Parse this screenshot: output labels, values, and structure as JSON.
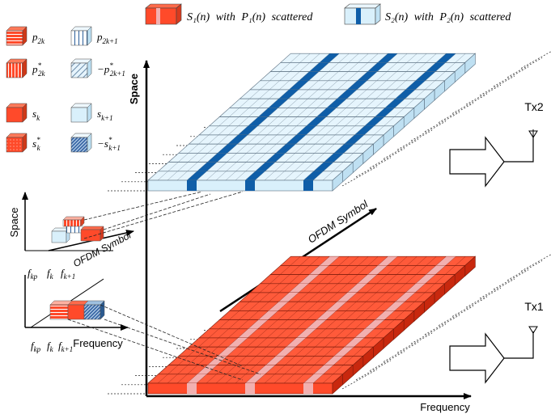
{
  "colors": {
    "red": "#ff4a2a",
    "red_dark": "#c8280e",
    "red_top": "#ff5a3a",
    "red_pilot": "#f2b0b0",
    "blue_light": "#d9f0fb",
    "blue_top": "#e6f5fd",
    "blue_pilot": "#0f5ea8",
    "line": "#222222"
  },
  "legend_top": {
    "s1_math": "S₁(n)",
    "s1_text": "with",
    "s1_p": "P₁(n)",
    "s1_tail": "scattered",
    "s2_math": "S₂(n)",
    "s2_text": "with",
    "s2_p": "P₂(n)",
    "s2_tail": "scattered"
  },
  "legend_left": [
    {
      "label": "p",
      "sub": "2k",
      "sup": "",
      "style": "red-hstripe",
      "prefix": ""
    },
    {
      "label": "p",
      "sub": "2k+1",
      "sup": "",
      "style": "blue-vstripe",
      "prefix": ""
    },
    {
      "label": "p",
      "sub": "2k",
      "sup": "*",
      "style": "red-vstripe",
      "prefix": ""
    },
    {
      "label": "p",
      "sub": "2k+1",
      "sup": "*",
      "style": "blue-diag",
      "prefix": "−"
    },
    {
      "label": "s",
      "sub": "k",
      "sup": "",
      "style": "red-solid",
      "prefix": ""
    },
    {
      "label": "s",
      "sub": "k+1",
      "sup": "",
      "style": "blue-solid",
      "prefix": ""
    },
    {
      "label": "s",
      "sub": "k",
      "sup": "*",
      "style": "red-dots",
      "prefix": ""
    },
    {
      "label": "s",
      "sub": "k+1",
      "sup": "*",
      "style": "blue-hatch",
      "prefix": "−"
    }
  ],
  "axes": {
    "space": "Space",
    "ofdm_symbol": "OFDM Symbol",
    "frequency": "Frequency"
  },
  "small_axes": {
    "space": "Space",
    "ofdm_symbol": "OFDM Symbol",
    "frequency": "Frequency",
    "f_kp": "f",
    "f_kp_sub": "kp",
    "f_k": "f",
    "f_k_sub": "k",
    "f_k1": "f",
    "f_k1_sub": "k+1",
    "f2_kp": "f",
    "f2_kp_sub": "kp",
    "f2_k": "f",
    "f2_k_sub": "k",
    "f2_k1": "f",
    "f2_k1_sub": "k+1"
  },
  "antennas": {
    "tx2": "Tx2",
    "tx1": "Tx1"
  }
}
